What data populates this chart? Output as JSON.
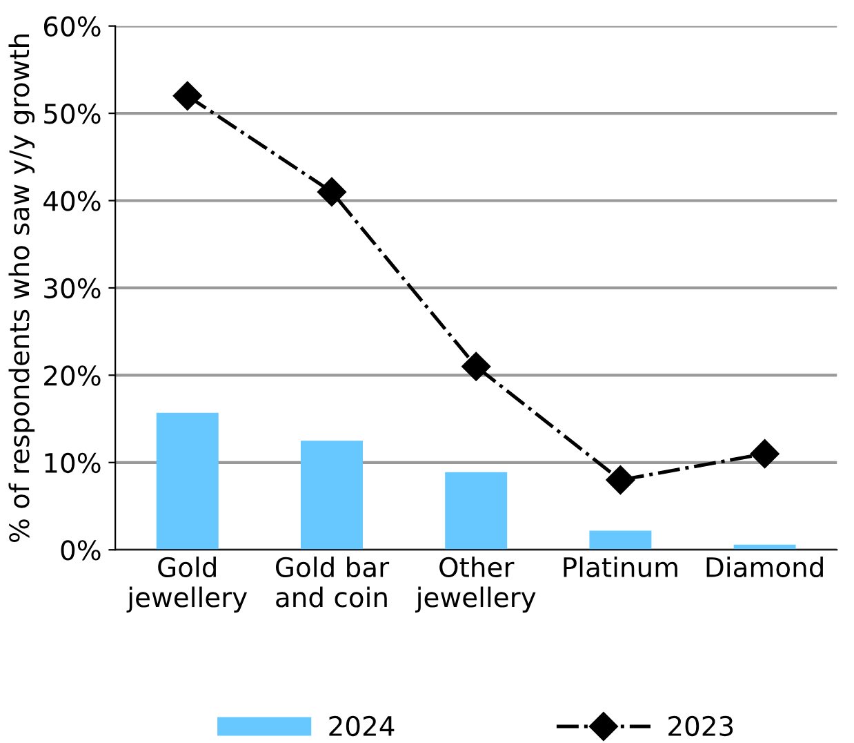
{
  "chart_data": {
    "type": "bar",
    "ylabel": "% of respondents who saw y/y growth",
    "categories": [
      "Gold\njewellery",
      "Gold bar\nand coin",
      "Other\njewellery",
      "Platinum",
      "Diamond"
    ],
    "series": [
      {
        "name": "2024",
        "type": "bar",
        "color": "#66c8ff",
        "values": [
          15.7,
          12.5,
          8.9,
          2.2,
          0.6
        ]
      },
      {
        "name": "2023",
        "type": "line",
        "color": "#000000",
        "values": [
          52,
          41,
          21,
          8,
          11
        ],
        "line_style": "dashdot"
      }
    ],
    "ylim": [
      0,
      60
    ],
    "yticks": [
      {
        "value": 0,
        "label": "0%"
      },
      {
        "value": 10,
        "label": "10%"
      },
      {
        "value": 20,
        "label": "20%"
      },
      {
        "value": 30,
        "label": "30%"
      },
      {
        "value": 40,
        "label": "40%"
      },
      {
        "value": 50,
        "label": "50%"
      },
      {
        "value": 60,
        "label": "60%"
      }
    ],
    "grid": "y",
    "legend": "bottom",
    "marker": "diamond"
  }
}
